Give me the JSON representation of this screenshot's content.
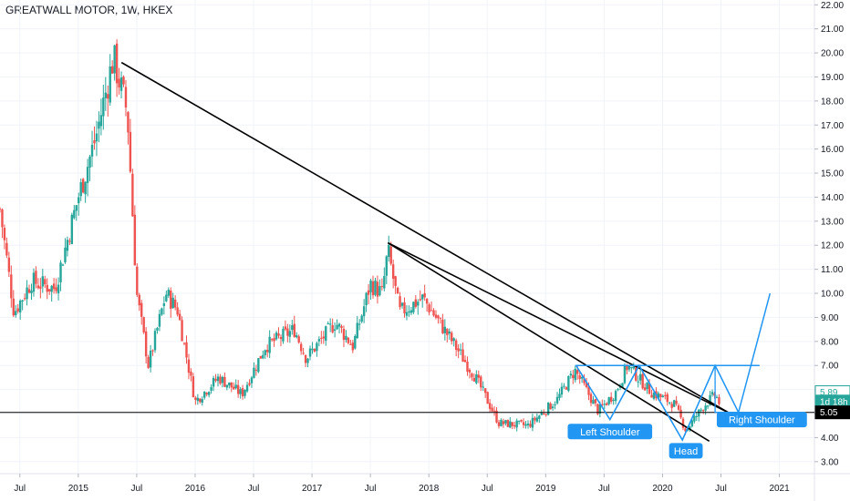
{
  "header": {
    "title": "GREATWALL MOTOR, 1W, HKEX"
  },
  "colors": {
    "up": "#26a69a",
    "down": "#ef5350",
    "trendline": "#000000",
    "pattern": "#2196f3",
    "grid": "#f0f3fa",
    "axis_text": "#131722",
    "tag_green": "#26a69a",
    "tag_black": "#000000"
  },
  "chart_data": {
    "type": "candlestick",
    "title": "GREATWALL MOTOR, 1W, HKEX",
    "symbol": "GREATWALL MOTOR",
    "interval": "1W",
    "exchange": "HKEX",
    "ylim": [
      2.5,
      22.2
    ],
    "xlim": [
      2014.33,
      2021.3
    ],
    "yticks": [
      "3.00",
      "4.00",
      "5.00",
      "6.00",
      "7.00",
      "8.00",
      "9.00",
      "10.00",
      "11.00",
      "12.00",
      "13.00",
      "14.00",
      "15.00",
      "16.00",
      "17.00",
      "18.00",
      "19.00",
      "20.00",
      "21.00",
      "22.00"
    ],
    "xticks": [
      {
        "label": "Jul",
        "x": 2014.5
      },
      {
        "label": "2015",
        "x": 2015.0
      },
      {
        "label": "Jul",
        "x": 2015.5
      },
      {
        "label": "2016",
        "x": 2016.0
      },
      {
        "label": "Jul",
        "x": 2016.5
      },
      {
        "label": "2017",
        "x": 2017.0
      },
      {
        "label": "Jul",
        "x": 2017.5
      },
      {
        "label": "2018",
        "x": 2018.0
      },
      {
        "label": "Jul",
        "x": 2018.5
      },
      {
        "label": "2019",
        "x": 2019.0
      },
      {
        "label": "Jul",
        "x": 2019.5
      },
      {
        "label": "2020",
        "x": 2020.0
      },
      {
        "label": "Jul",
        "x": 2020.5
      },
      {
        "label": "2021",
        "x": 2021.0
      }
    ],
    "price_anchors": [
      {
        "x": 2014.33,
        "y": 13.5
      },
      {
        "x": 2014.45,
        "y": 9.2
      },
      {
        "x": 2014.6,
        "y": 10.5
      },
      {
        "x": 2014.8,
        "y": 10.2
      },
      {
        "x": 2015.0,
        "y": 14.0
      },
      {
        "x": 2015.15,
        "y": 16.5
      },
      {
        "x": 2015.3,
        "y": 19.8
      },
      {
        "x": 2015.42,
        "y": 17.5
      },
      {
        "x": 2015.47,
        "y": 12.8
      },
      {
        "x": 2015.5,
        "y": 10.0
      },
      {
        "x": 2015.6,
        "y": 7.0
      },
      {
        "x": 2015.75,
        "y": 10.0
      },
      {
        "x": 2015.85,
        "y": 9.3
      },
      {
        "x": 2016.0,
        "y": 5.5
      },
      {
        "x": 2016.2,
        "y": 6.5
      },
      {
        "x": 2016.4,
        "y": 5.8
      },
      {
        "x": 2016.6,
        "y": 7.8
      },
      {
        "x": 2016.85,
        "y": 8.5
      },
      {
        "x": 2016.95,
        "y": 7.3
      },
      {
        "x": 2017.2,
        "y": 8.8
      },
      {
        "x": 2017.35,
        "y": 7.8
      },
      {
        "x": 2017.5,
        "y": 10.4
      },
      {
        "x": 2017.6,
        "y": 10.0
      },
      {
        "x": 2017.65,
        "y": 11.8
      },
      {
        "x": 2017.75,
        "y": 9.2
      },
      {
        "x": 2017.95,
        "y": 9.8
      },
      {
        "x": 2018.2,
        "y": 8.0
      },
      {
        "x": 2018.4,
        "y": 6.5
      },
      {
        "x": 2018.6,
        "y": 4.6
      },
      {
        "x": 2018.85,
        "y": 4.5
      },
      {
        "x": 2019.1,
        "y": 5.6
      },
      {
        "x": 2019.25,
        "y": 6.8
      },
      {
        "x": 2019.45,
        "y": 5.1
      },
      {
        "x": 2019.6,
        "y": 5.9
      },
      {
        "x": 2019.7,
        "y": 7.0
      },
      {
        "x": 2019.9,
        "y": 5.9
      },
      {
        "x": 2020.1,
        "y": 5.4
      },
      {
        "x": 2020.2,
        "y": 4.3
      },
      {
        "x": 2020.35,
        "y": 5.3
      },
      {
        "x": 2020.45,
        "y": 5.8
      },
      {
        "x": 2020.5,
        "y": 5.3
      }
    ],
    "trendlines": [
      {
        "from": [
          2015.37,
          19.6
        ],
        "to": [
          2020.58,
          5.0
        ]
      },
      {
        "from": [
          2017.65,
          12.1
        ],
        "to": [
          2020.58,
          5.0
        ]
      },
      {
        "from": [
          2017.65,
          12.1
        ],
        "to": [
          2020.4,
          3.85
        ]
      }
    ],
    "horizontal_line": 5.05,
    "pattern": {
      "name": "head and shoulders (inverse)",
      "neckline": 7.0,
      "neckline_range": [
        2019.26,
        2020.65
      ],
      "points": [
        [
          2019.26,
          7.0
        ],
        [
          2019.55,
          4.75
        ],
        [
          2019.8,
          7.0
        ],
        [
          2020.17,
          3.9
        ],
        [
          2020.45,
          7.0
        ],
        [
          2020.65,
          5.05
        ],
        [
          2020.92,
          10.0
        ]
      ],
      "triangles": [
        [
          [
            2019.26,
            7.0
          ],
          [
            2019.55,
            4.75
          ],
          [
            2019.8,
            7.0
          ]
        ],
        [
          [
            2019.8,
            7.0
          ],
          [
            2020.17,
            3.9
          ],
          [
            2020.45,
            7.0
          ]
        ],
        [
          [
            2020.45,
            7.0
          ],
          [
            2020.65,
            5.05
          ],
          [
            2020.45,
            5.05
          ]
        ]
      ]
    },
    "annotations": [
      {
        "text": "Left Shoulder",
        "x": 2019.55,
        "y": 4.25
      },
      {
        "text": "Head",
        "x": 2020.2,
        "y": 3.45
      },
      {
        "text": "Right Shoulder",
        "x": 2020.85,
        "y": 4.75
      }
    ],
    "price_tags": [
      {
        "text": "5.89",
        "y": 5.89,
        "style": "green-outline"
      },
      {
        "text": "1d 18h",
        "y": 5.5,
        "style": "green-fill"
      },
      {
        "text": "5.05",
        "y": 5.05,
        "style": "black-fill"
      }
    ]
  }
}
